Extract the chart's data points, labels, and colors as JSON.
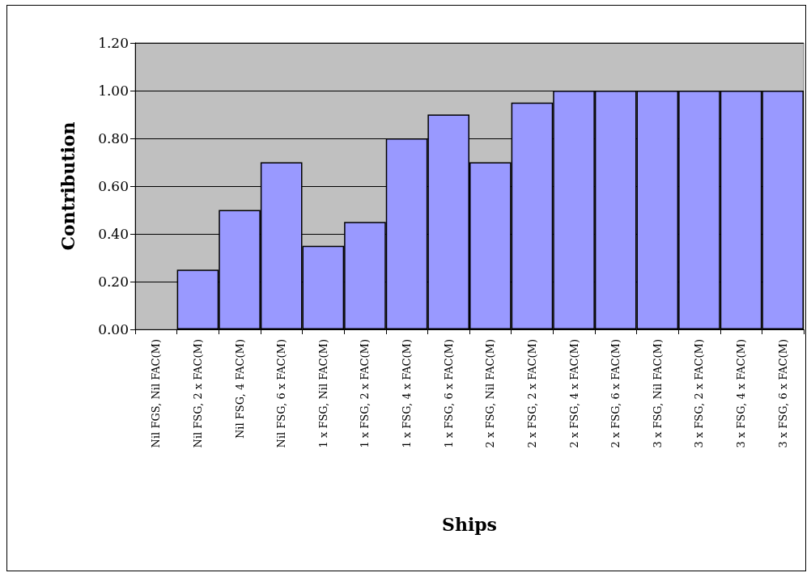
{
  "chart_data": {
    "type": "bar",
    "xlabel": "Ships",
    "ylabel": "Contribution",
    "categories": [
      "Nil FGS, Nil FAC(M)",
      "Nil FSG, 2 x FAC(M)",
      "Nil FSG, 4 FAC(M)",
      "Nil FSG, 6 x FAC(M)",
      "1 x FSG, Nil FAC(M)",
      "1 x FSG, 2 x FAC(M)",
      "1 x FSG, 4 x FAC(M)",
      "1 x FSG, 6 x FAC(M)",
      "2 x FSG, Nil FAC(M)",
      "2 x FSG, 2 x FAC(M)",
      "2 x FSG, 4 x FAC(M)",
      "2 x FSG, 6 x FAC(M)",
      "3 x FSG, Nil FAC(M)",
      "3 x FSG, 2 x FAC(M)",
      "3 x FSG, 4 x FAC(M)",
      "3 x FSG, 6 x FAC(M)"
    ],
    "values": [
      0,
      0.25,
      0.5,
      0.7,
      0.35,
      0.45,
      0.8,
      0.9,
      0.7,
      0.95,
      1,
      1,
      1,
      1,
      1,
      1
    ],
    "color": "#9999ff",
    "ylim": [
      0,
      1.2
    ],
    "yticks": [
      {
        "value": 0,
        "label": "0.00"
      },
      {
        "value": 0.2,
        "label": "0.20"
      },
      {
        "value": 0.4,
        "label": "0.40"
      },
      {
        "value": 0.6,
        "label": "0.60"
      },
      {
        "value": 0.8,
        "label": "0.80"
      },
      {
        "value": 1,
        "label": "1.00"
      },
      {
        "value": 1.2,
        "label": "1.20"
      }
    ],
    "grid": "y"
  }
}
